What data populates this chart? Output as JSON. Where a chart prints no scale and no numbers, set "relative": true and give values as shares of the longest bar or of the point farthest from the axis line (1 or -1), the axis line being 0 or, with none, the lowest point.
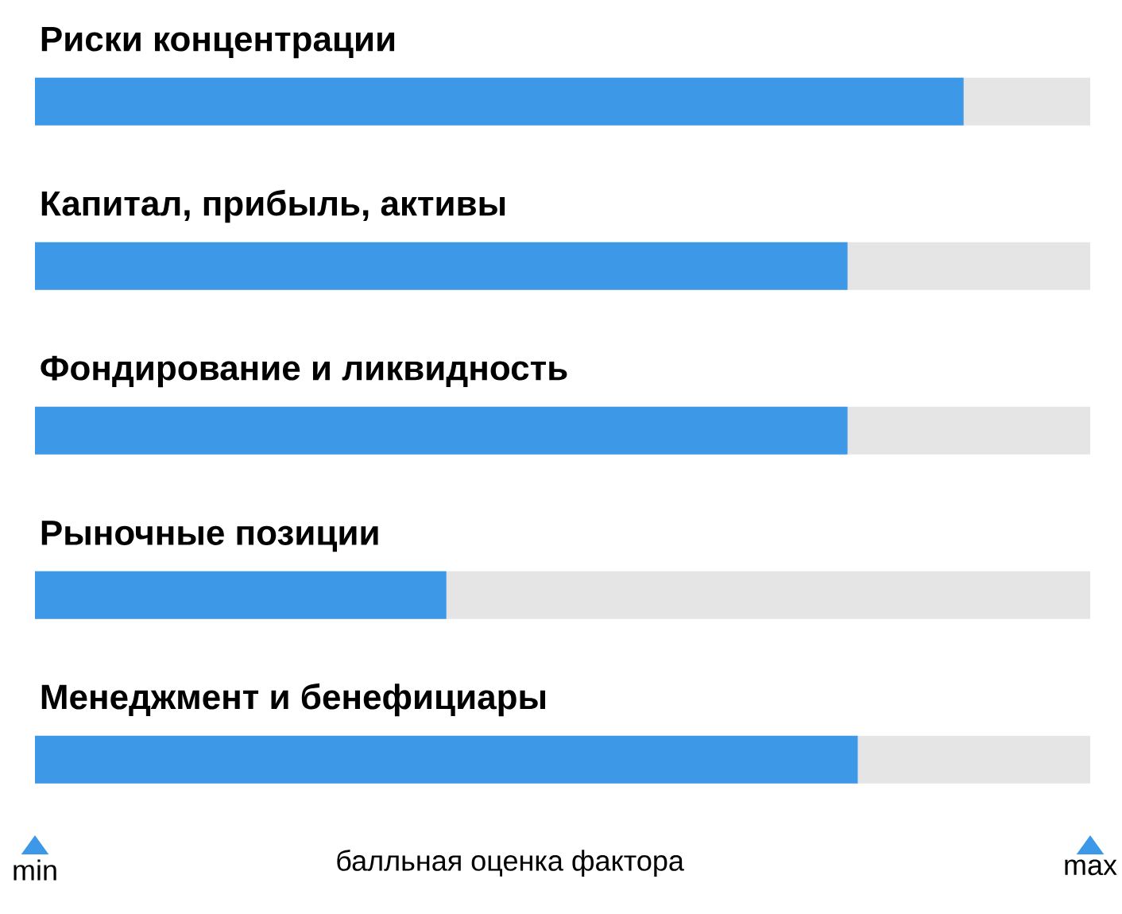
{
  "chart_data": {
    "type": "bar",
    "orientation": "horizontal",
    "relative": true,
    "categories": [
      "Риски концентрации",
      "Капитал, прибыль, активы",
      "Фондирование и ликвидность",
      "Рыночные позиции",
      "Менеджмент и бенефициары"
    ],
    "values": [
      1,
      0.875,
      0.875,
      0.443,
      0.886
    ],
    "color": "#3d99e8",
    "xlabel": "балльная оценка фактора",
    "annotations": [
      "min",
      "max"
    ]
  }
}
